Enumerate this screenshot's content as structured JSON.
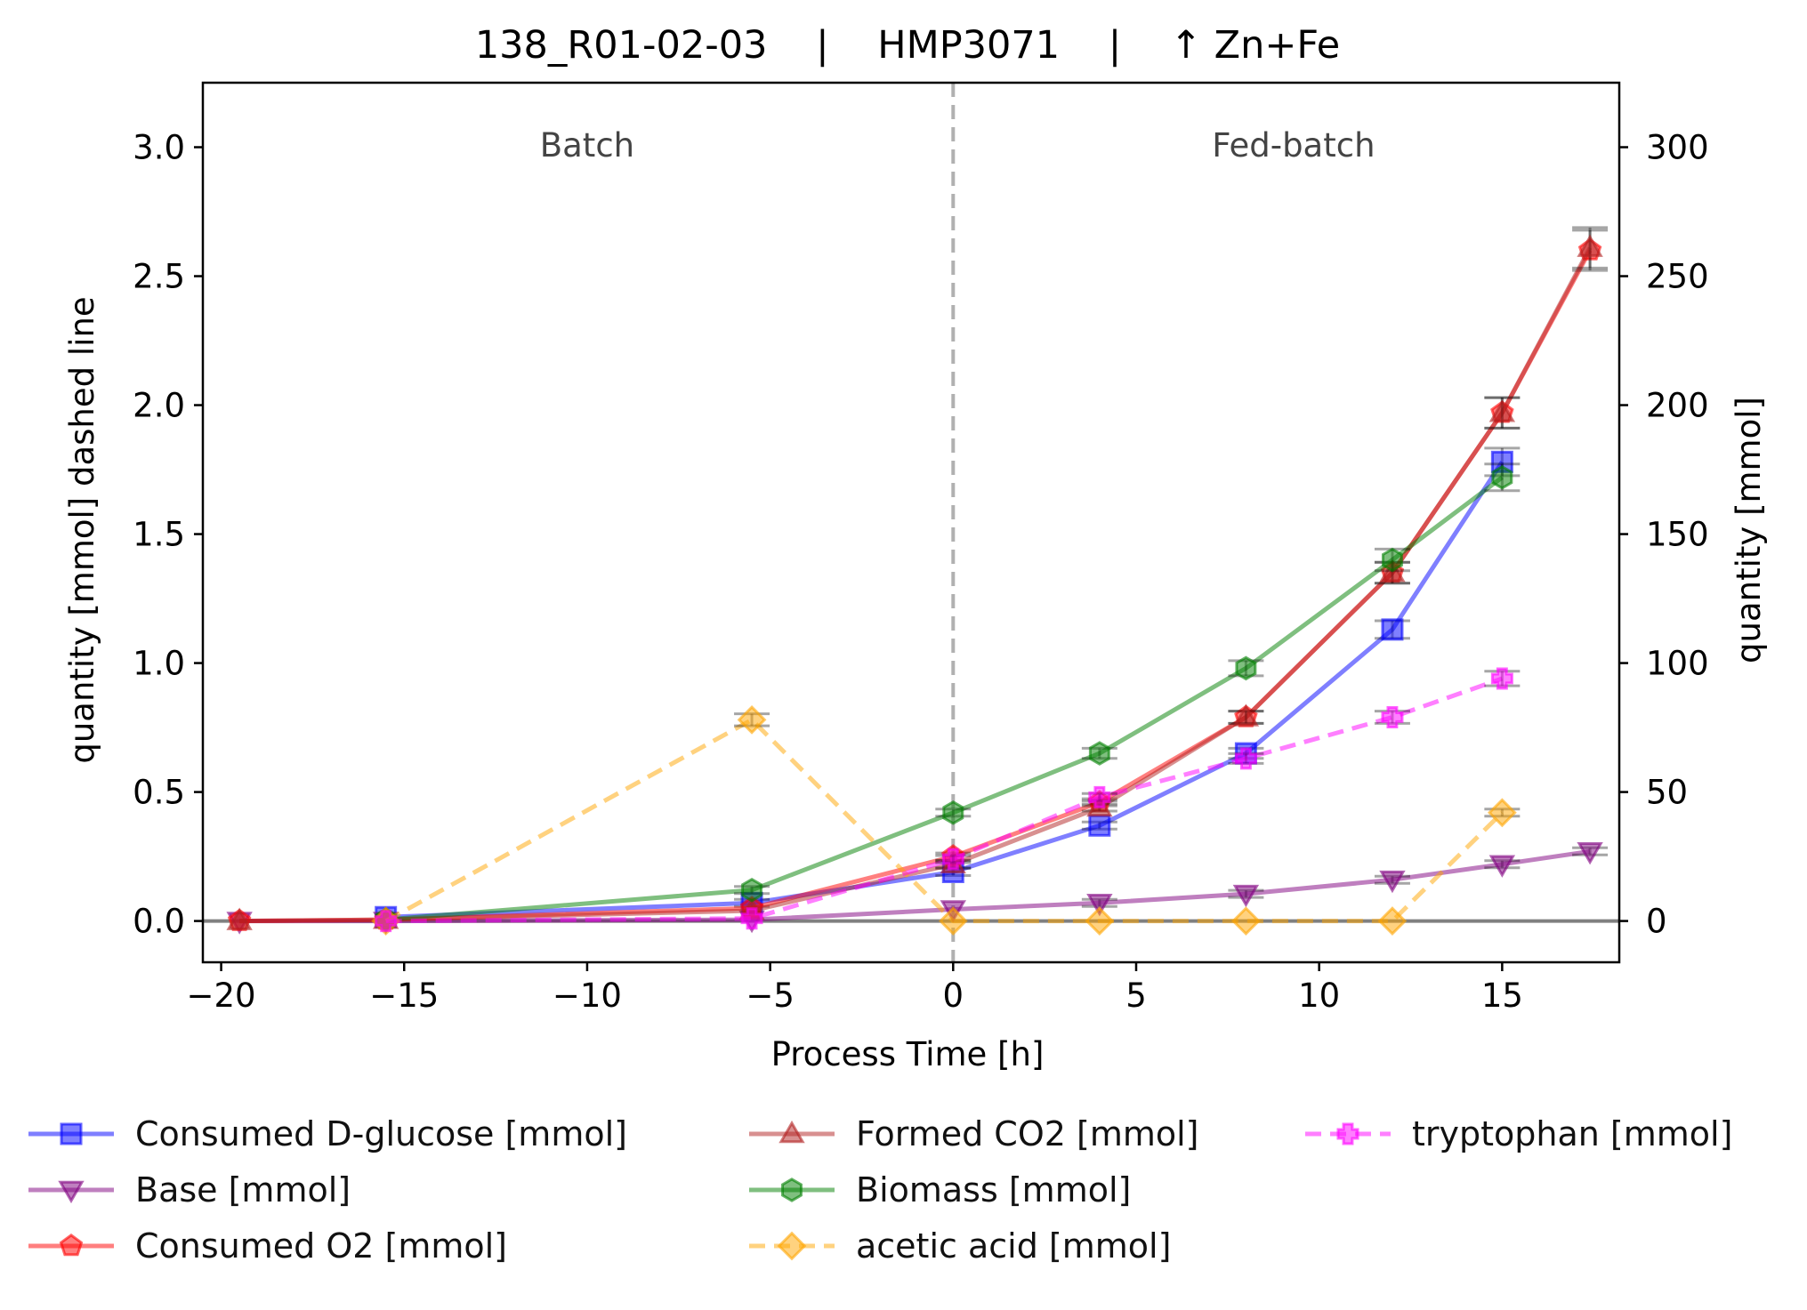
{
  "chart_data": {
    "type": "line",
    "title": "138_R01-02-03    |    HMP3071    |    ↑ Zn+Fe",
    "xlabel": "Process Time [h]",
    "ylabel_left": "quantity [mmol] dashed line",
    "ylabel_right": "quantity [mmol]",
    "xlim": [
      -20.5,
      18.2
    ],
    "ylim_left": [
      -0.16,
      3.25
    ],
    "ylim_right": [
      -16,
      325
    ],
    "x_ticks": [
      "−20",
      "−15",
      "−10",
      "−5",
      "0",
      "5",
      "10",
      "15"
    ],
    "y_ticks_left": [
      "0.0",
      "0.5",
      "1.0",
      "1.5",
      "2.0",
      "2.5",
      "3.0"
    ],
    "y_ticks_right": [
      "0",
      "50",
      "100",
      "150",
      "200",
      "250",
      "300"
    ],
    "annotations": [
      {
        "text": "Batch",
        "x": -10
      },
      {
        "text": "Fed-batch",
        "x": 9.3
      }
    ],
    "feed_start_x": 0,
    "legend_position": "below",
    "series": [
      {
        "name": "Consumed D-glucose [mmol]",
        "axis": "right",
        "color": "#0000ff",
        "marker": "square",
        "dashed": false,
        "x": [
          -15.5,
          -5.5,
          0,
          4,
          8,
          12,
          15
        ],
        "y": [
          1.5,
          7,
          19,
          37,
          65,
          113,
          178
        ]
      },
      {
        "name": "Base [mmol]",
        "axis": "right",
        "color": "#800080",
        "marker": "triangle-down",
        "dashed": false,
        "x": [
          -19.5,
          -15.5,
          -5.5,
          0,
          4,
          8,
          12,
          15,
          17.4
        ],
        "y": [
          0,
          0,
          0.5,
          4.5,
          7,
          10.5,
          16,
          22,
          27
        ]
      },
      {
        "name": "Consumed O2 [mmol]",
        "axis": "right",
        "color": "#ff0000",
        "marker": "pentagon",
        "dashed": false,
        "x": [
          -19.5,
          -15.5,
          -5.5,
          0,
          4,
          8,
          12,
          15,
          17.4
        ],
        "y": [
          0,
          0.5,
          5,
          25,
          46,
          79,
          135,
          197,
          260
        ]
      },
      {
        "name": "Formed CO2 [mmol]",
        "axis": "right",
        "color": "#b22222",
        "marker": "triangle-up",
        "dashed": false,
        "x": [
          -19.5,
          -15.5,
          -5.5,
          0,
          4,
          8,
          12,
          15,
          17.4
        ],
        "y": [
          0,
          0.5,
          4,
          22,
          44,
          79,
          135,
          197,
          261
        ]
      },
      {
        "name": "Biomass [mmol]",
        "axis": "right",
        "color": "#008000",
        "marker": "hexagon",
        "dashed": false,
        "x": [
          -15.5,
          -5.5,
          0,
          4,
          8,
          12,
          15
        ],
        "y": [
          0.5,
          12,
          42,
          65,
          98,
          140,
          172
        ]
      },
      {
        "name": "acetic acid [mmol]",
        "axis": "left",
        "color": "#ffa500",
        "marker": "diamond",
        "dashed": true,
        "x": [
          -15.5,
          -5.5,
          0,
          4,
          8,
          12,
          15
        ],
        "y": [
          0,
          0.78,
          0,
          0,
          0,
          0,
          0.42
        ]
      },
      {
        "name": "tryptophan [mmol]",
        "axis": "left",
        "color": "#ff00ff",
        "marker": "plus",
        "dashed": true,
        "x": [
          -15.5,
          -5.5,
          0,
          4,
          8,
          12,
          15
        ],
        "y": [
          0,
          0.01,
          0.24,
          0.48,
          0.63,
          0.79,
          0.94
        ]
      }
    ]
  }
}
